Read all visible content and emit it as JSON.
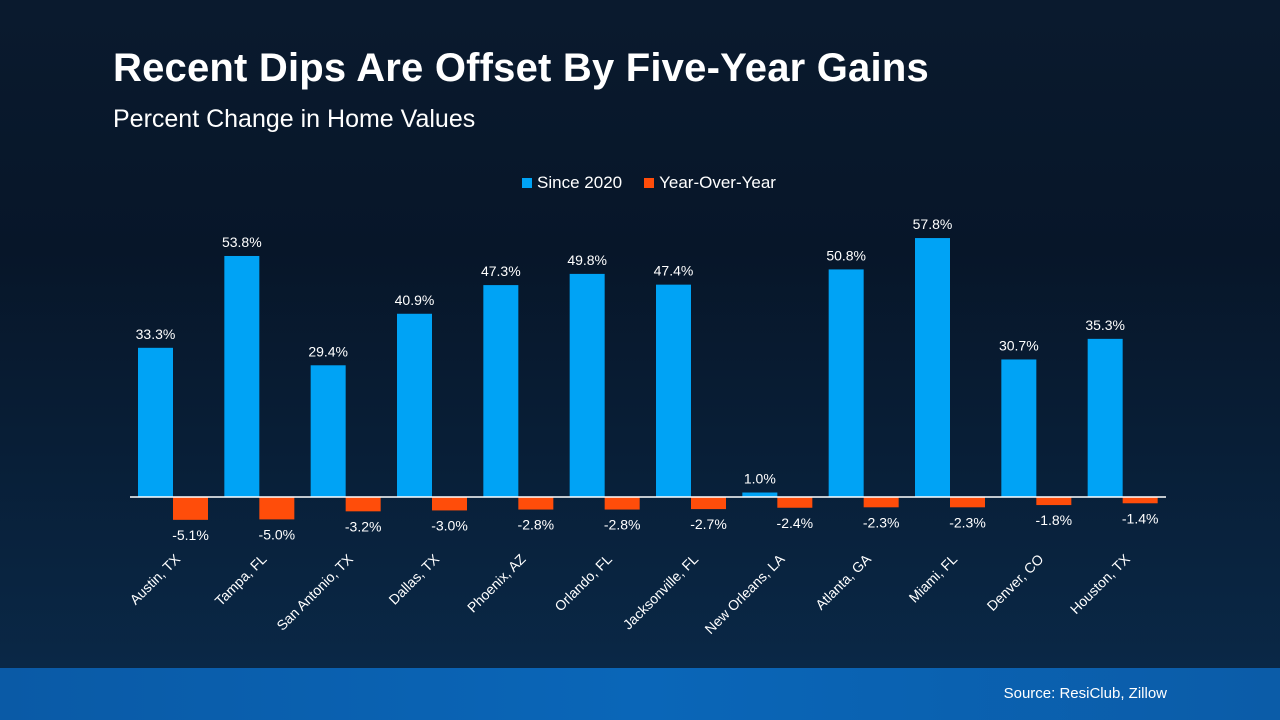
{
  "header": {
    "title": "Recent Dips Are Offset By Five-Year Gains",
    "subtitle": "Percent Change in Home Values"
  },
  "footer": {
    "source": "Source: ResiClub, Zillow"
  },
  "colors": {
    "since2020": "#00a3f5",
    "yoy": "#ff4d0a",
    "axis": "#ffffff"
  },
  "chart_data": {
    "type": "bar",
    "categories": [
      "Austin, TX",
      "Tampa, FL",
      "San Antonio, TX",
      "Dallas, TX",
      "Phoenix, AZ",
      "Orlando, FL",
      "Jacksonville, FL",
      "New Orleans, LA",
      "Atlanta, GA",
      "Miami, FL",
      "Denver, CO",
      "Houston, TX"
    ],
    "series": [
      {
        "name": "Since 2020",
        "values": [
          33.3,
          53.8,
          29.4,
          40.9,
          47.3,
          49.8,
          47.4,
          1.0,
          50.8,
          57.8,
          30.7,
          35.3
        ],
        "labels": [
          "33.3%",
          "53.8%",
          "29.4%",
          "40.9%",
          "47.3%",
          "49.8%",
          "47.4%",
          "1.0%",
          "50.8%",
          "57.8%",
          "30.7%",
          "35.3%"
        ]
      },
      {
        "name": "Year-Over-Year",
        "values": [
          -5.1,
          -5.0,
          -3.2,
          -3.0,
          -2.8,
          -2.8,
          -2.7,
          -2.4,
          -2.3,
          -2.3,
          -1.8,
          -1.4
        ],
        "labels": [
          "-5.1%",
          "-5.0%",
          "-3.2%",
          "-3.0%",
          "-2.8%",
          "-2.8%",
          "-2.7%",
          "-2.4%",
          "-2.3%",
          "-2.3%",
          "-1.8%",
          "-1.4%"
        ]
      }
    ],
    "legend_position": "top-center",
    "grid": false,
    "ylim": [
      -6,
      60
    ]
  }
}
